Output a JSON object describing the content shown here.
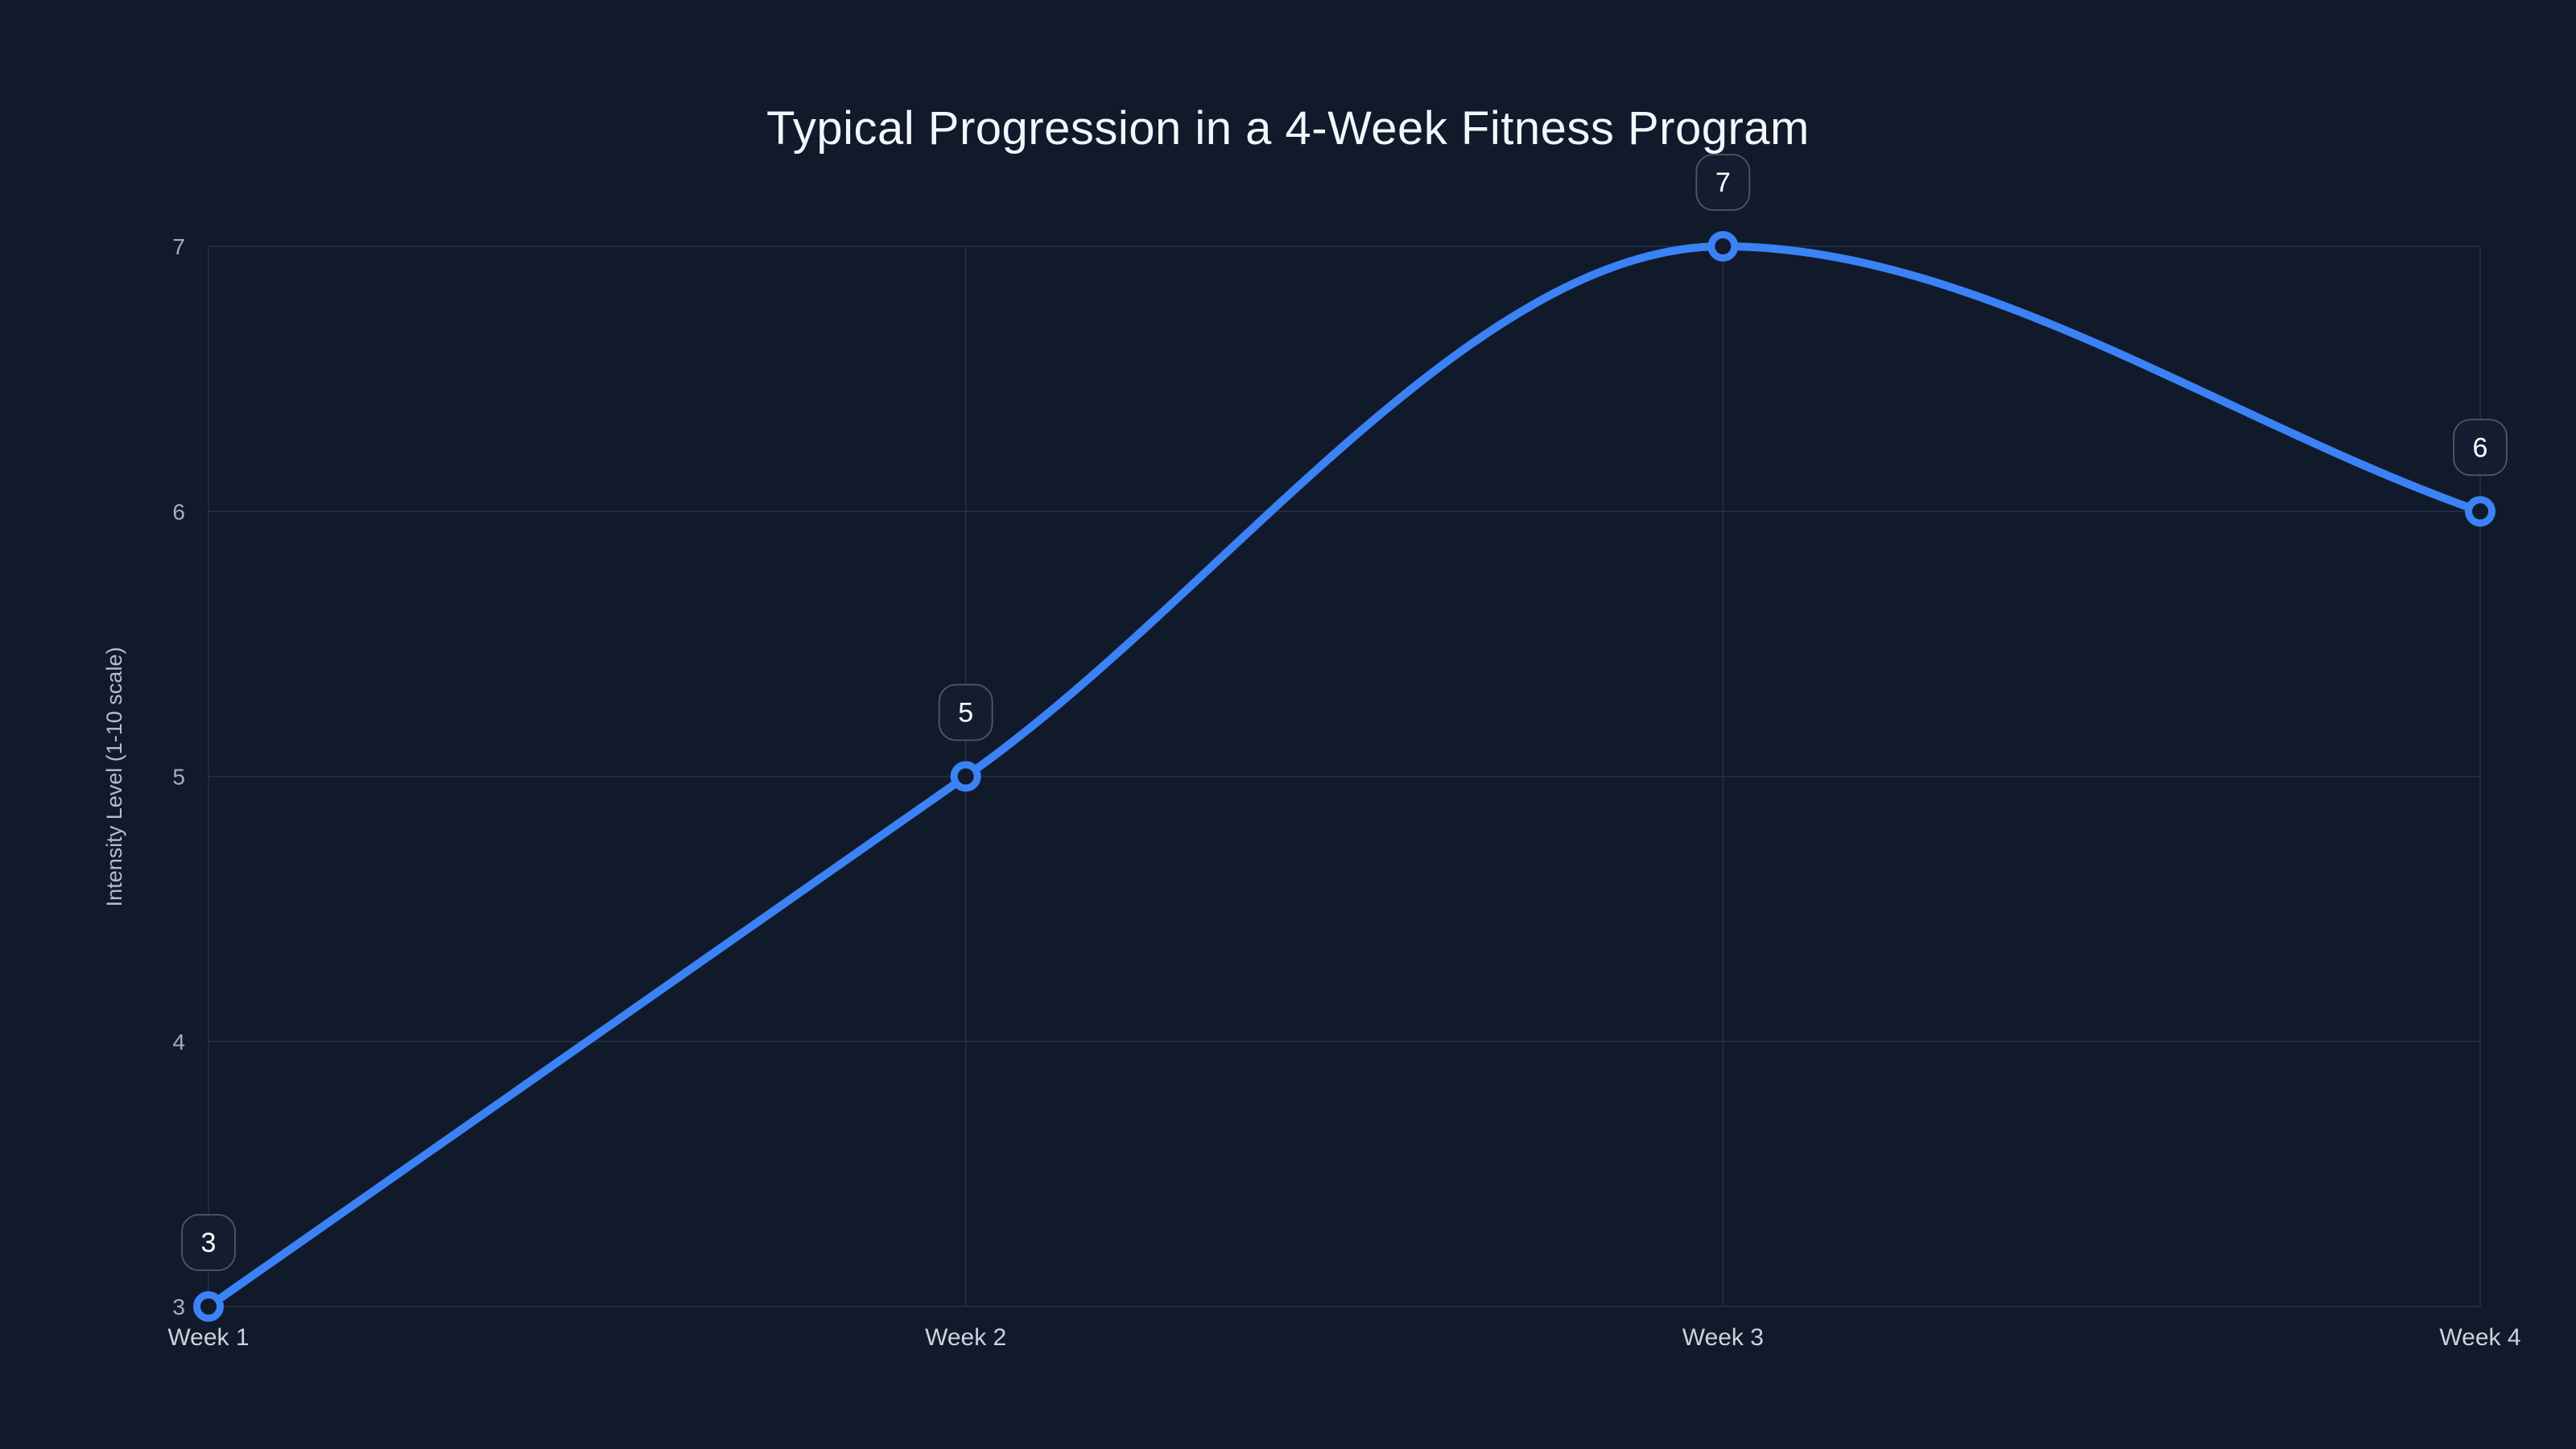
{
  "chart_data": {
    "type": "line",
    "title": "Typical Progression in a 4-Week Fitness Program",
    "categories": [
      "Week 1",
      "Week 2",
      "Week 3",
      "Week 4"
    ],
    "values": [
      3,
      5,
      7,
      6
    ],
    "point_labels": [
      "3",
      "5",
      "7",
      "6"
    ],
    "xlabel": "",
    "ylabel": "Intensity Level (1-10 scale)",
    "ylim": [
      3,
      7
    ],
    "yticks": [
      3,
      4,
      5,
      6,
      7
    ],
    "grid": true,
    "legend": false,
    "curve": "monotone",
    "colors": {
      "background": "#111a2b",
      "line": "#3b82f6",
      "marker_stroke": "#3b82f6",
      "marker_fill": "#111a2b",
      "grid": "#25304a",
      "title_text": "#f3f6fa",
      "y_tick_text": "#a3aec2",
      "x_tick_text": "#ccd3de",
      "axis_title_text": "#b3bdcd",
      "badge_bg": "#141d30",
      "badge_border": "rgba(148,163,184,0.45)",
      "badge_text": "#ffffff"
    }
  }
}
